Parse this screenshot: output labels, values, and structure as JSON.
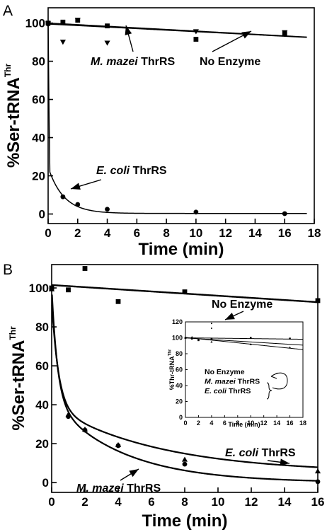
{
  "chart_data": [
    {
      "panel": "A",
      "type": "scatter",
      "xlabel": "Time (min)",
      "ylabel_main": "%Ser-tRNA",
      "ylabel_sup": "Thr",
      "xlim": [
        0,
        18
      ],
      "ylim": [
        -5,
        108
      ],
      "xticks": [
        "0",
        "2",
        "4",
        "6",
        "8",
        "10",
        "12",
        "14",
        "16",
        "18"
      ],
      "yticks": [
        "0",
        "20",
        "40",
        "60",
        "80",
        "100"
      ],
      "series": [
        {
          "marker": "square",
          "points": [
            [
              0,
              100
            ],
            [
              1,
              100.5
            ],
            [
              2,
              101.5
            ],
            [
              4,
              98.5
            ],
            [
              10,
              91.5
            ],
            [
              16,
              94.5
            ]
          ]
        },
        {
          "marker": "triangle-down",
          "points": [
            [
              0,
              99.5
            ],
            [
              1,
              90
            ],
            [
              2,
              101.5
            ],
            [
              4,
              89.5
            ],
            [
              10,
              95.5
            ],
            [
              16,
              95
            ]
          ]
        },
        {
          "marker": "circle",
          "points": [
            [
              0,
              99.5
            ],
            [
              1,
              9
            ],
            [
              2,
              5
            ],
            [
              4,
              2.5
            ],
            [
              10,
              1
            ],
            [
              16,
              0.2
            ]
          ]
        }
      ],
      "annotations": [
        {
          "italic": "M. mazei",
          "text": " ThrRS"
        },
        {
          "italic": "",
          "text": "No Enzyme"
        },
        {
          "italic": "E. coli",
          "text": " ThrRS"
        }
      ]
    },
    {
      "panel": "B",
      "type": "scatter",
      "xlabel": "Time (min)",
      "ylabel_main": "%Ser-tRNA",
      "ylabel_sup": "Thr",
      "xlim": [
        0,
        16
      ],
      "ylim": [
        -5,
        112
      ],
      "xticks": [
        "0",
        "2",
        "4",
        "6",
        "8",
        "10",
        "12",
        "14",
        "16"
      ],
      "yticks": [
        "0",
        "20",
        "40",
        "60",
        "80",
        "100"
      ],
      "series": [
        {
          "marker": "square",
          "points": [
            [
              0,
              100
            ],
            [
              1,
              99
            ],
            [
              2,
              110
            ],
            [
              4,
              93
            ],
            [
              8,
              98
            ],
            [
              16,
              93.5
            ]
          ]
        },
        {
          "marker": "circle",
          "points": [
            [
              0,
              99.5
            ],
            [
              1,
              34
            ],
            [
              2,
              27
            ],
            [
              4,
              19
            ],
            [
              8,
              9.5
            ],
            [
              16,
              0.5
            ]
          ]
        },
        {
          "marker": "triangle-up",
          "points": [
            [
              0,
              99.5
            ],
            [
              1,
              35
            ],
            [
              2,
              27.5
            ],
            [
              4,
              19.5
            ],
            [
              8,
              12
            ],
            [
              16,
              6
            ]
          ]
        }
      ],
      "annotations": [
        {
          "italic": "",
          "text": "No Enzyme"
        },
        {
          "italic": "E. coli",
          "text": " ThrRS"
        },
        {
          "italic": "M. mazei",
          "text": " ThrRS"
        }
      ],
      "inset": {
        "xlabel": "Time (min)",
        "ylabel_main": "%Thr-tRNA",
        "ylabel_sup": "Thr",
        "xlim": [
          0,
          18
        ],
        "ylim": [
          0,
          120
        ],
        "xticks": [
          "0",
          "2",
          "4",
          "6",
          "8",
          "10",
          "12",
          "14",
          "16",
          "18"
        ],
        "yticks": [
          "0",
          "20",
          "40",
          "60",
          "80",
          "100",
          "120"
        ],
        "legend": [
          {
            "italic": "",
            "text": "No Enzyme"
          },
          {
            "italic": "M. mazei",
            "text": " ThrRS"
          },
          {
            "italic": "E. coli",
            "text": " ThrRS"
          }
        ]
      }
    }
  ]
}
